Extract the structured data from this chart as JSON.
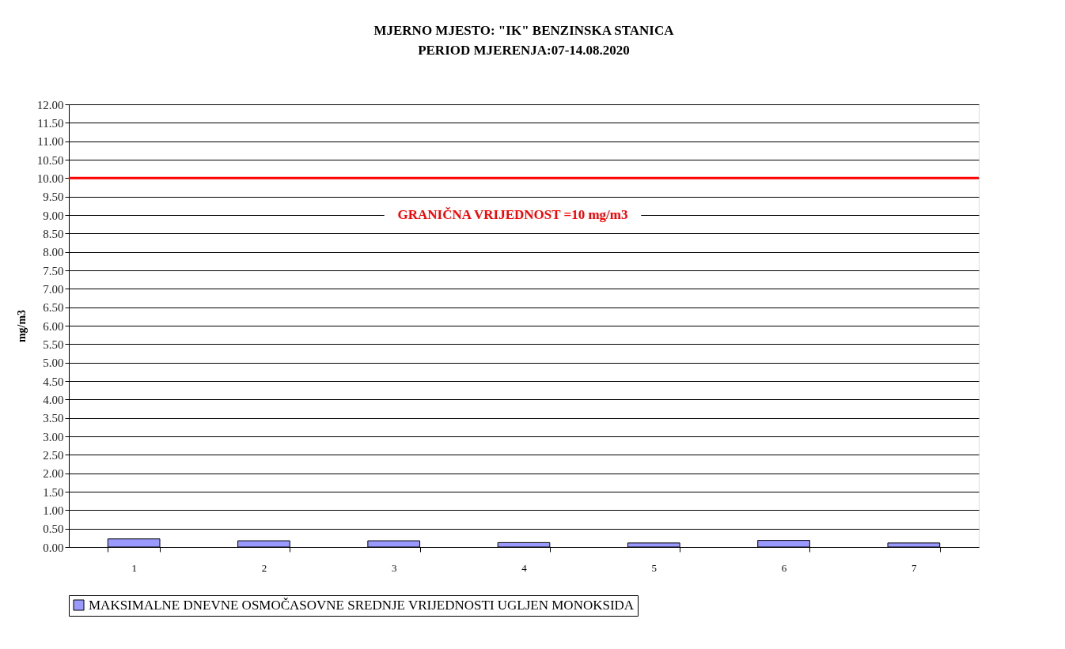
{
  "chart_data": {
    "type": "bar",
    "title": "MJERNO MJESTO: \"IK\" BENZINSKA STANICA",
    "subtitle": "PERIOD MJERENJA:07-14.08.2020",
    "ylabel": "mg/m3",
    "categories": [
      "1",
      "2",
      "3",
      "4",
      "5",
      "6",
      "7"
    ],
    "series": [
      {
        "name": "MAKSIMALNE DNEVNE OSMOČASOVNE SREDNJE VRIJEDNOSTI UGLJEN MONOKSIDA",
        "color": "#9999ff",
        "values": [
          0.22,
          0.17,
          0.17,
          0.12,
          0.11,
          0.18,
          0.11
        ]
      }
    ],
    "ylim": [
      0,
      12
    ],
    "yticks": [
      {
        "value": 0,
        "label": "0.00"
      },
      {
        "value": 0.5,
        "label": "0.50"
      },
      {
        "value": 1,
        "label": "1.00"
      },
      {
        "value": 1.5,
        "label": "1.50"
      },
      {
        "value": 2,
        "label": "2.00"
      },
      {
        "value": 2.5,
        "label": "2.50"
      },
      {
        "value": 3,
        "label": "3.00"
      },
      {
        "value": 3.5,
        "label": "3.50"
      },
      {
        "value": 4,
        "label": "4.00"
      },
      {
        "value": 4.5,
        "label": "4.50"
      },
      {
        "value": 5,
        "label": "5.00"
      },
      {
        "value": 5.5,
        "label": "5.50"
      },
      {
        "value": 6,
        "label": "6.00"
      },
      {
        "value": 6.5,
        "label": "6.50"
      },
      {
        "value": 7,
        "label": "7.00"
      },
      {
        "value": 7.5,
        "label": "7.50"
      },
      {
        "value": 8,
        "label": "8.00"
      },
      {
        "value": 8.5,
        "label": "8.50"
      },
      {
        "value": 9,
        "label": "9.00"
      },
      {
        "value": 9.5,
        "label": "9.50"
      },
      {
        "value": 10,
        "label": "10.00"
      },
      {
        "value": 10.5,
        "label": "10.50"
      },
      {
        "value": 11,
        "label": "11.00"
      },
      {
        "value": 11.5,
        "label": "11.50"
      },
      {
        "value": 12,
        "label": "12.00"
      }
    ],
    "ref_lines": [
      {
        "axis": "y",
        "value": 10,
        "label": "GRANIČNA VRIJEDNOST =10 mg/m3",
        "color": "#ff0000"
      }
    ],
    "grid": "y",
    "legend": "bottom"
  }
}
